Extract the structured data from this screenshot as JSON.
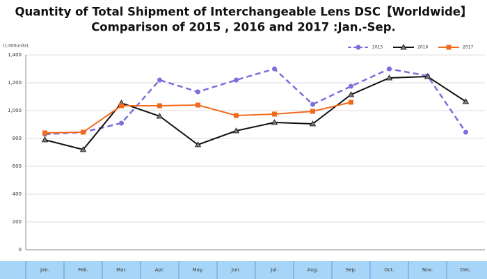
{
  "chart_data": {
    "type": "line",
    "title": "Quantity of Total Shipment of Interchangeable Lens DSC【Worldwide】",
    "subtitle": "Comparison of 2015 , 2016 and 2017 :Jan.-Sep.",
    "y_label": "(1,000units)",
    "categories": [
      "Jan.",
      "Feb.",
      "Mar.",
      "Apr.",
      "May.",
      "Jun.",
      "Jul.",
      "Aug.",
      "Sep.",
      "Oct.",
      "Nov.",
      "Dec."
    ],
    "series": [
      {
        "name": "2015",
        "color": "#7b6fdc",
        "marker": "circle",
        "dashed": true,
        "values": [
          830,
          845,
          910,
          1220,
          1135,
          1220,
          1300,
          1045,
          1175,
          1300,
          1250,
          845
        ]
      },
      {
        "name": "2016",
        "color": "#111111",
        "marker": "triangle",
        "dashed": false,
        "values": [
          790,
          720,
          1055,
          960,
          755,
          855,
          915,
          905,
          1115,
          1235,
          1245,
          1065
        ]
      },
      {
        "name": "2017",
        "color": "#f26b1d",
        "marker": "square",
        "dashed": false,
        "values": [
          840,
          845,
          1035,
          1035,
          1040,
          965,
          975,
          995,
          1060,
          null,
          null,
          null
        ]
      }
    ],
    "ylim": [
      0,
      1400
    ],
    "yticks": [
      0,
      200,
      400,
      600,
      800,
      {
        "value": 1000,
        "label": "1,000"
      },
      {
        "value": 1200,
        "label": "1,200"
      },
      {
        "value": 1400,
        "label": "1,400"
      }
    ],
    "grid": true,
    "legend": "top-right"
  }
}
